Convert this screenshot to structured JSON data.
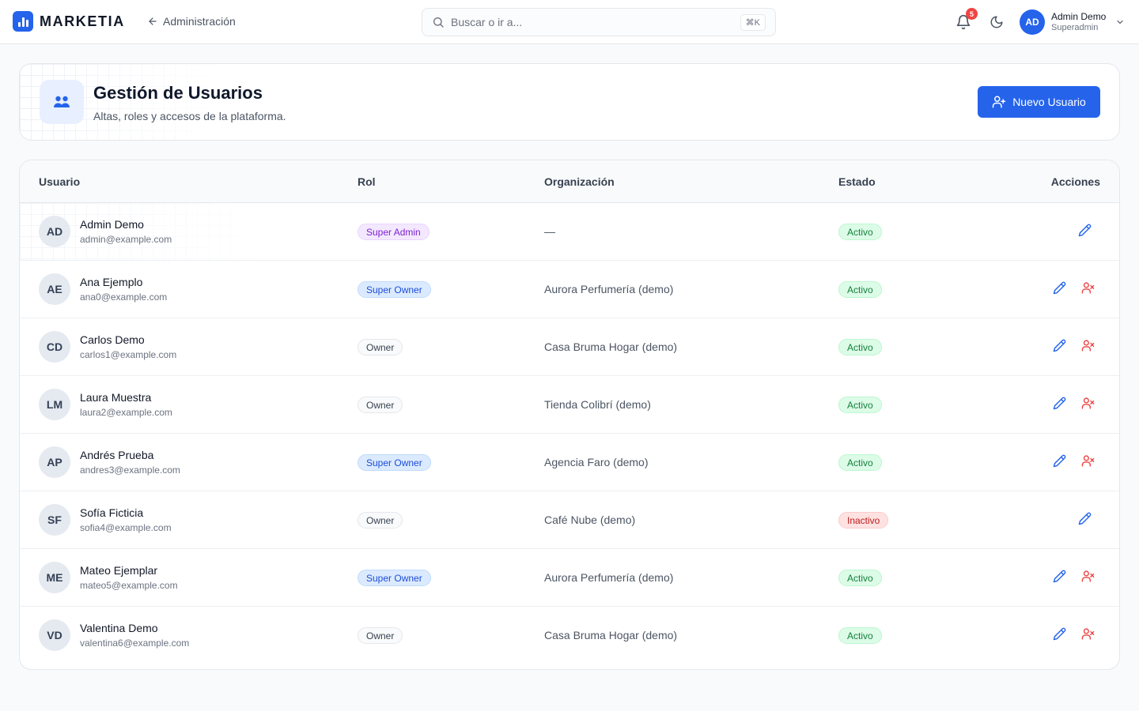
{
  "app": {
    "brand": "MARKETIA",
    "back_label": "Administración",
    "search_placeholder": "Buscar o ir a...",
    "search_shortcut": "⌘K",
    "notifications_count": "5",
    "user": {
      "initials": "AD",
      "name": "Admin Demo",
      "role": "Superadmin"
    }
  },
  "colors": {
    "accent": "#2563eb",
    "danger": "#ef4444",
    "success": "#15803d"
  },
  "page": {
    "title": "Gestión de Usuarios",
    "subtitle": "Altas, roles y accesos de la plataforma.",
    "new_user_label": "Nuevo Usuario"
  },
  "table": {
    "headers": {
      "user": "Usuario",
      "role": "Rol",
      "org": "Organización",
      "status": "Estado",
      "actions": "Acciones"
    },
    "rows": [
      {
        "initials": "AD",
        "name": "Admin Demo",
        "email": "admin@example.com",
        "role": "Super Admin",
        "role_kind": "admin",
        "org": "—",
        "status": "Activo",
        "status_kind": "active",
        "can_remove": false
      },
      {
        "initials": "AE",
        "name": "Ana Ejemplo",
        "email": "ana0@example.com",
        "role": "Super Owner",
        "role_kind": "sowner",
        "org": "Aurora Perfumería (demo)",
        "status": "Activo",
        "status_kind": "active",
        "can_remove": true
      },
      {
        "initials": "CD",
        "name": "Carlos Demo",
        "email": "carlos1@example.com",
        "role": "Owner",
        "role_kind": "owner",
        "org": "Casa Bruma Hogar (demo)",
        "status": "Activo",
        "status_kind": "active",
        "can_remove": true
      },
      {
        "initials": "LM",
        "name": "Laura Muestra",
        "email": "laura2@example.com",
        "role": "Owner",
        "role_kind": "owner",
        "org": "Tienda Colibrí (demo)",
        "status": "Activo",
        "status_kind": "active",
        "can_remove": true
      },
      {
        "initials": "AP",
        "name": "Andrés Prueba",
        "email": "andres3@example.com",
        "role": "Super Owner",
        "role_kind": "sowner",
        "org": "Agencia Faro (demo)",
        "status": "Activo",
        "status_kind": "active",
        "can_remove": true
      },
      {
        "initials": "SF",
        "name": "Sofía Ficticia",
        "email": "sofia4@example.com",
        "role": "Owner",
        "role_kind": "owner",
        "org": "Café Nube (demo)",
        "status": "Inactivo",
        "status_kind": "inactive",
        "can_remove": false
      },
      {
        "initials": "ME",
        "name": "Mateo Ejemplar",
        "email": "mateo5@example.com",
        "role": "Super Owner",
        "role_kind": "sowner",
        "org": "Aurora Perfumería (demo)",
        "status": "Activo",
        "status_kind": "active",
        "can_remove": true
      },
      {
        "initials": "VD",
        "name": "Valentina Demo",
        "email": "valentina6@example.com",
        "role": "Owner",
        "role_kind": "owner",
        "org": "Casa Bruma Hogar (demo)",
        "status": "Activo",
        "status_kind": "active",
        "can_remove": true
      }
    ]
  },
  "icons": {
    "logo": "bar-chart-icon",
    "back": "arrow-left-icon",
    "search": "search-icon",
    "bell": "bell-icon",
    "theme": "moon-icon",
    "menu": "chevron-down-icon",
    "header": "users-icon",
    "new_user": "user-plus-icon",
    "edit": "pencil-icon",
    "remove": "user-x-icon"
  }
}
